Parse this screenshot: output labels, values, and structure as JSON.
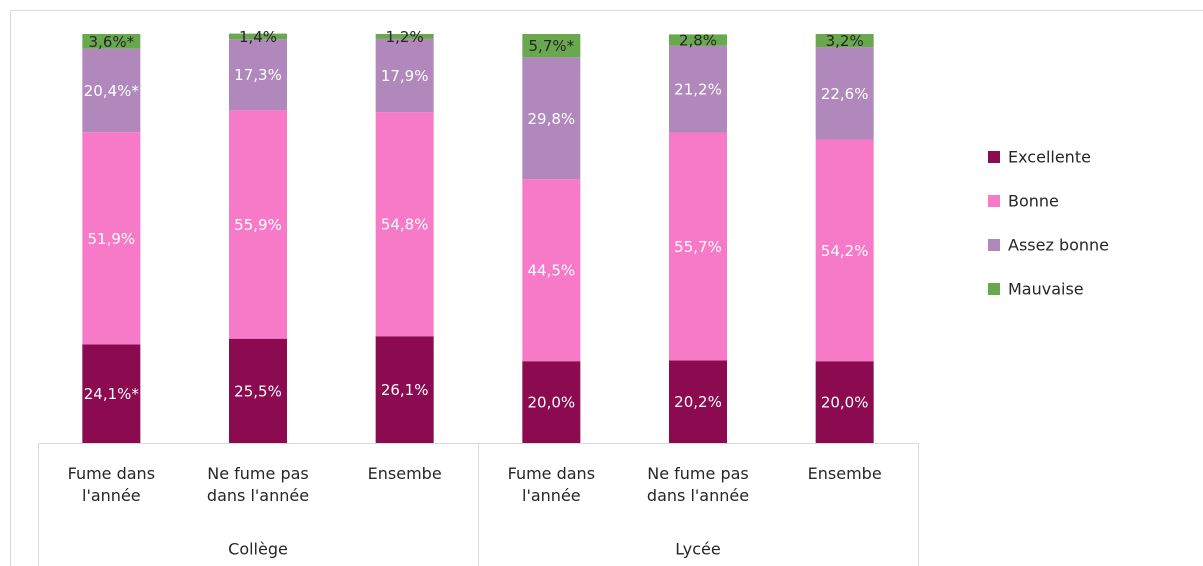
{
  "chart_data": {
    "type": "stacked_bar",
    "categories": [
      "Fume dans l'année",
      "Ne fume pas dans l'année",
      "Ensembe",
      "Fume dans l'année",
      "Ne fume pas dans l'année",
      "Ensembe"
    ],
    "groups": [
      "Collège",
      "Lycée"
    ],
    "ylim": [
      0,
      100
    ],
    "legend": "right",
    "series": [
      {
        "name": "Excellente",
        "color": "#8b0a50",
        "label_color": "#ffffff",
        "values": [
          24.1,
          25.5,
          26.1,
          20.0,
          20.2,
          20.0
        ],
        "value_labels": [
          "24,1%*",
          "25,5%",
          "26,1%",
          "20,0%",
          "20,2%",
          "20,0%"
        ]
      },
      {
        "name": "Bonne",
        "color": "#f77ac8",
        "label_color": "#ffffff",
        "values": [
          51.9,
          55.9,
          54.8,
          44.5,
          55.7,
          54.2
        ],
        "value_labels": [
          "51,9%",
          "55,9%",
          "54,8%",
          "44,5%",
          "55,7%",
          "54,2%"
        ]
      },
      {
        "name": "Assez bonne",
        "color": "#b088bc",
        "label_color": "#ffffff",
        "values": [
          20.4,
          17.3,
          17.9,
          29.8,
          21.2,
          22.6
        ],
        "value_labels": [
          "20,4%*",
          "17,3%",
          "17,9%",
          "29,8%",
          "21,2%",
          "22,6%"
        ]
      },
      {
        "name": "Mauvaise",
        "color": "#6aa84f",
        "label_color": "#262626",
        "values": [
          3.6,
          1.4,
          1.2,
          5.7,
          2.8,
          3.2
        ],
        "value_labels": [
          "3,6%*",
          "1,4%",
          "1,2%",
          "5,7%*",
          "2,8%",
          "3,2%"
        ]
      }
    ]
  }
}
